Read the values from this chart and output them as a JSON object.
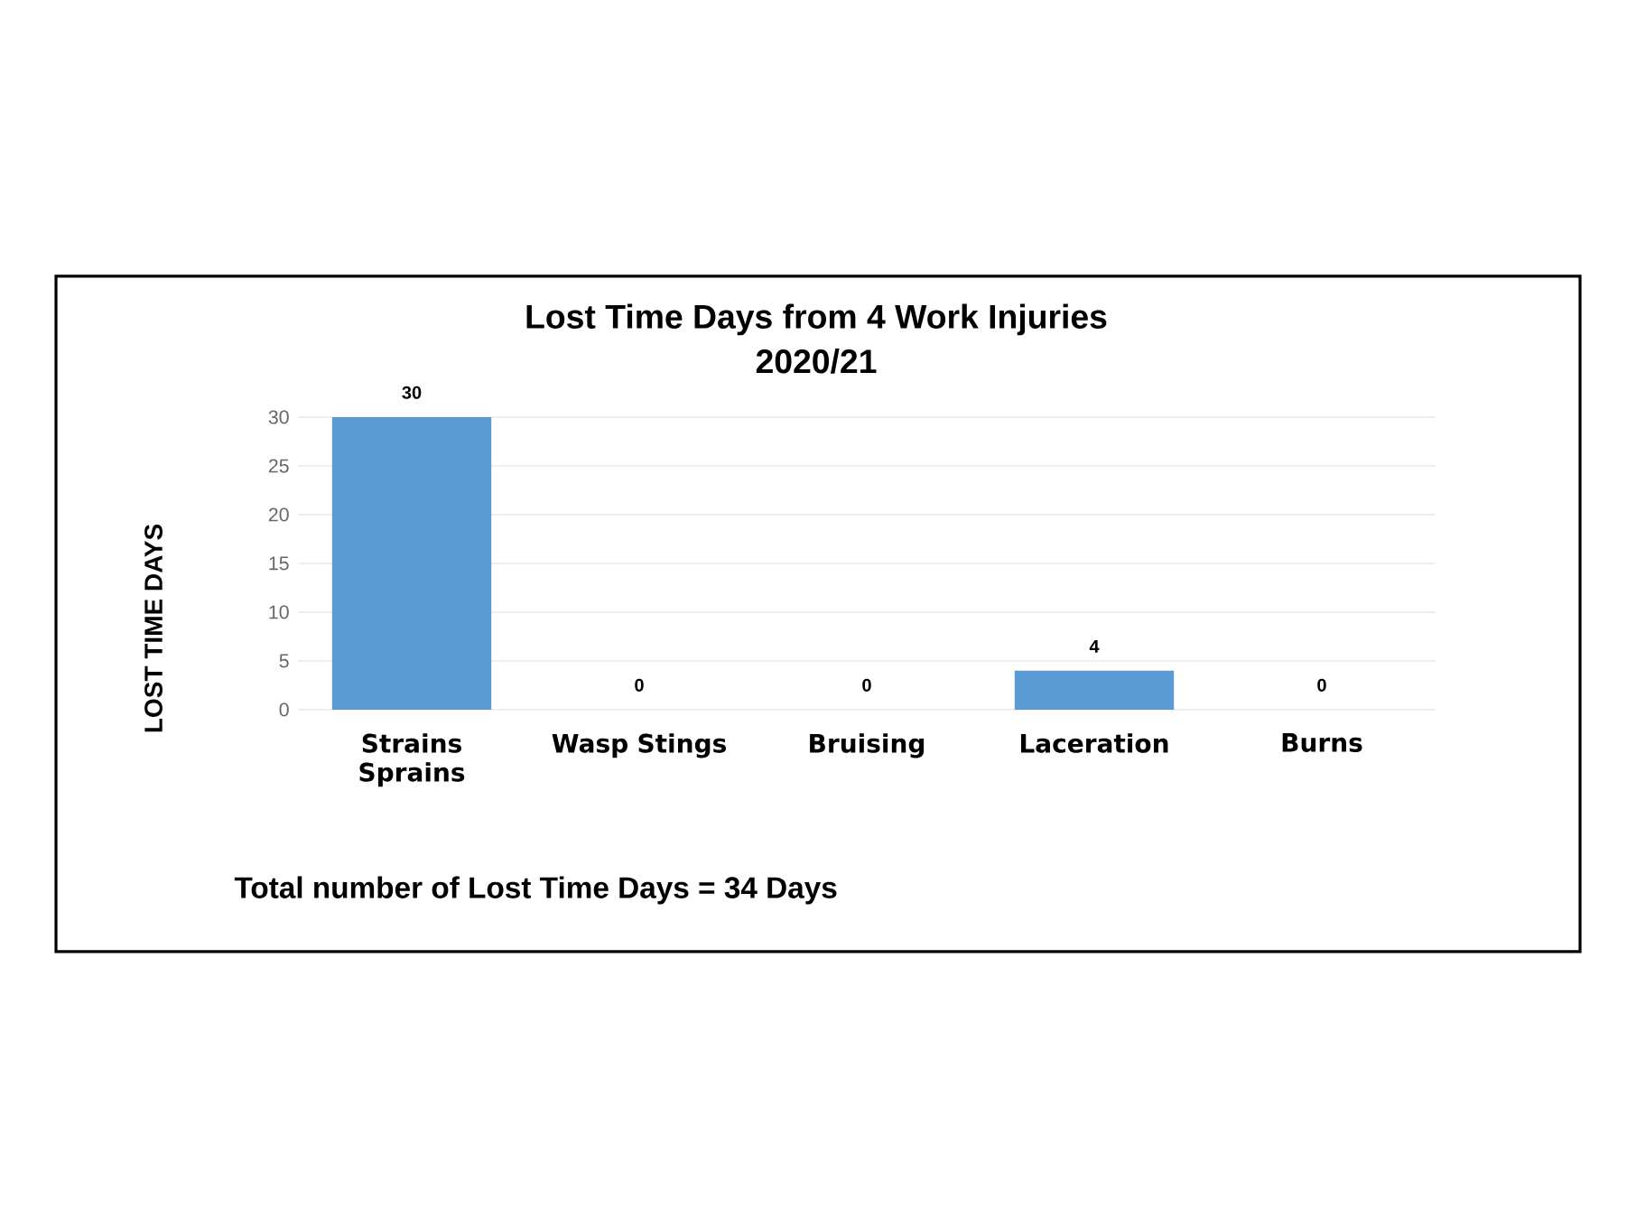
{
  "chart_data": {
    "type": "bar",
    "title": "Lost Time Days from 4 Work Injuries",
    "subtitle": "2020/21",
    "ylabel": "LOST TIME DAYS",
    "categories": [
      "Strains Sprains",
      "Wasp Stings",
      "Bruising",
      "Laceration",
      "Burns"
    ],
    "values": [
      30,
      0,
      0,
      4,
      0
    ],
    "color": "#5b9bd5",
    "ylim": [
      0,
      30
    ],
    "yticks": [
      0,
      5,
      10,
      15,
      20,
      25,
      30
    ],
    "grid": "y",
    "data_labels": true,
    "annotations": [
      "Total number of Lost Time Days = 34 Days"
    ]
  }
}
